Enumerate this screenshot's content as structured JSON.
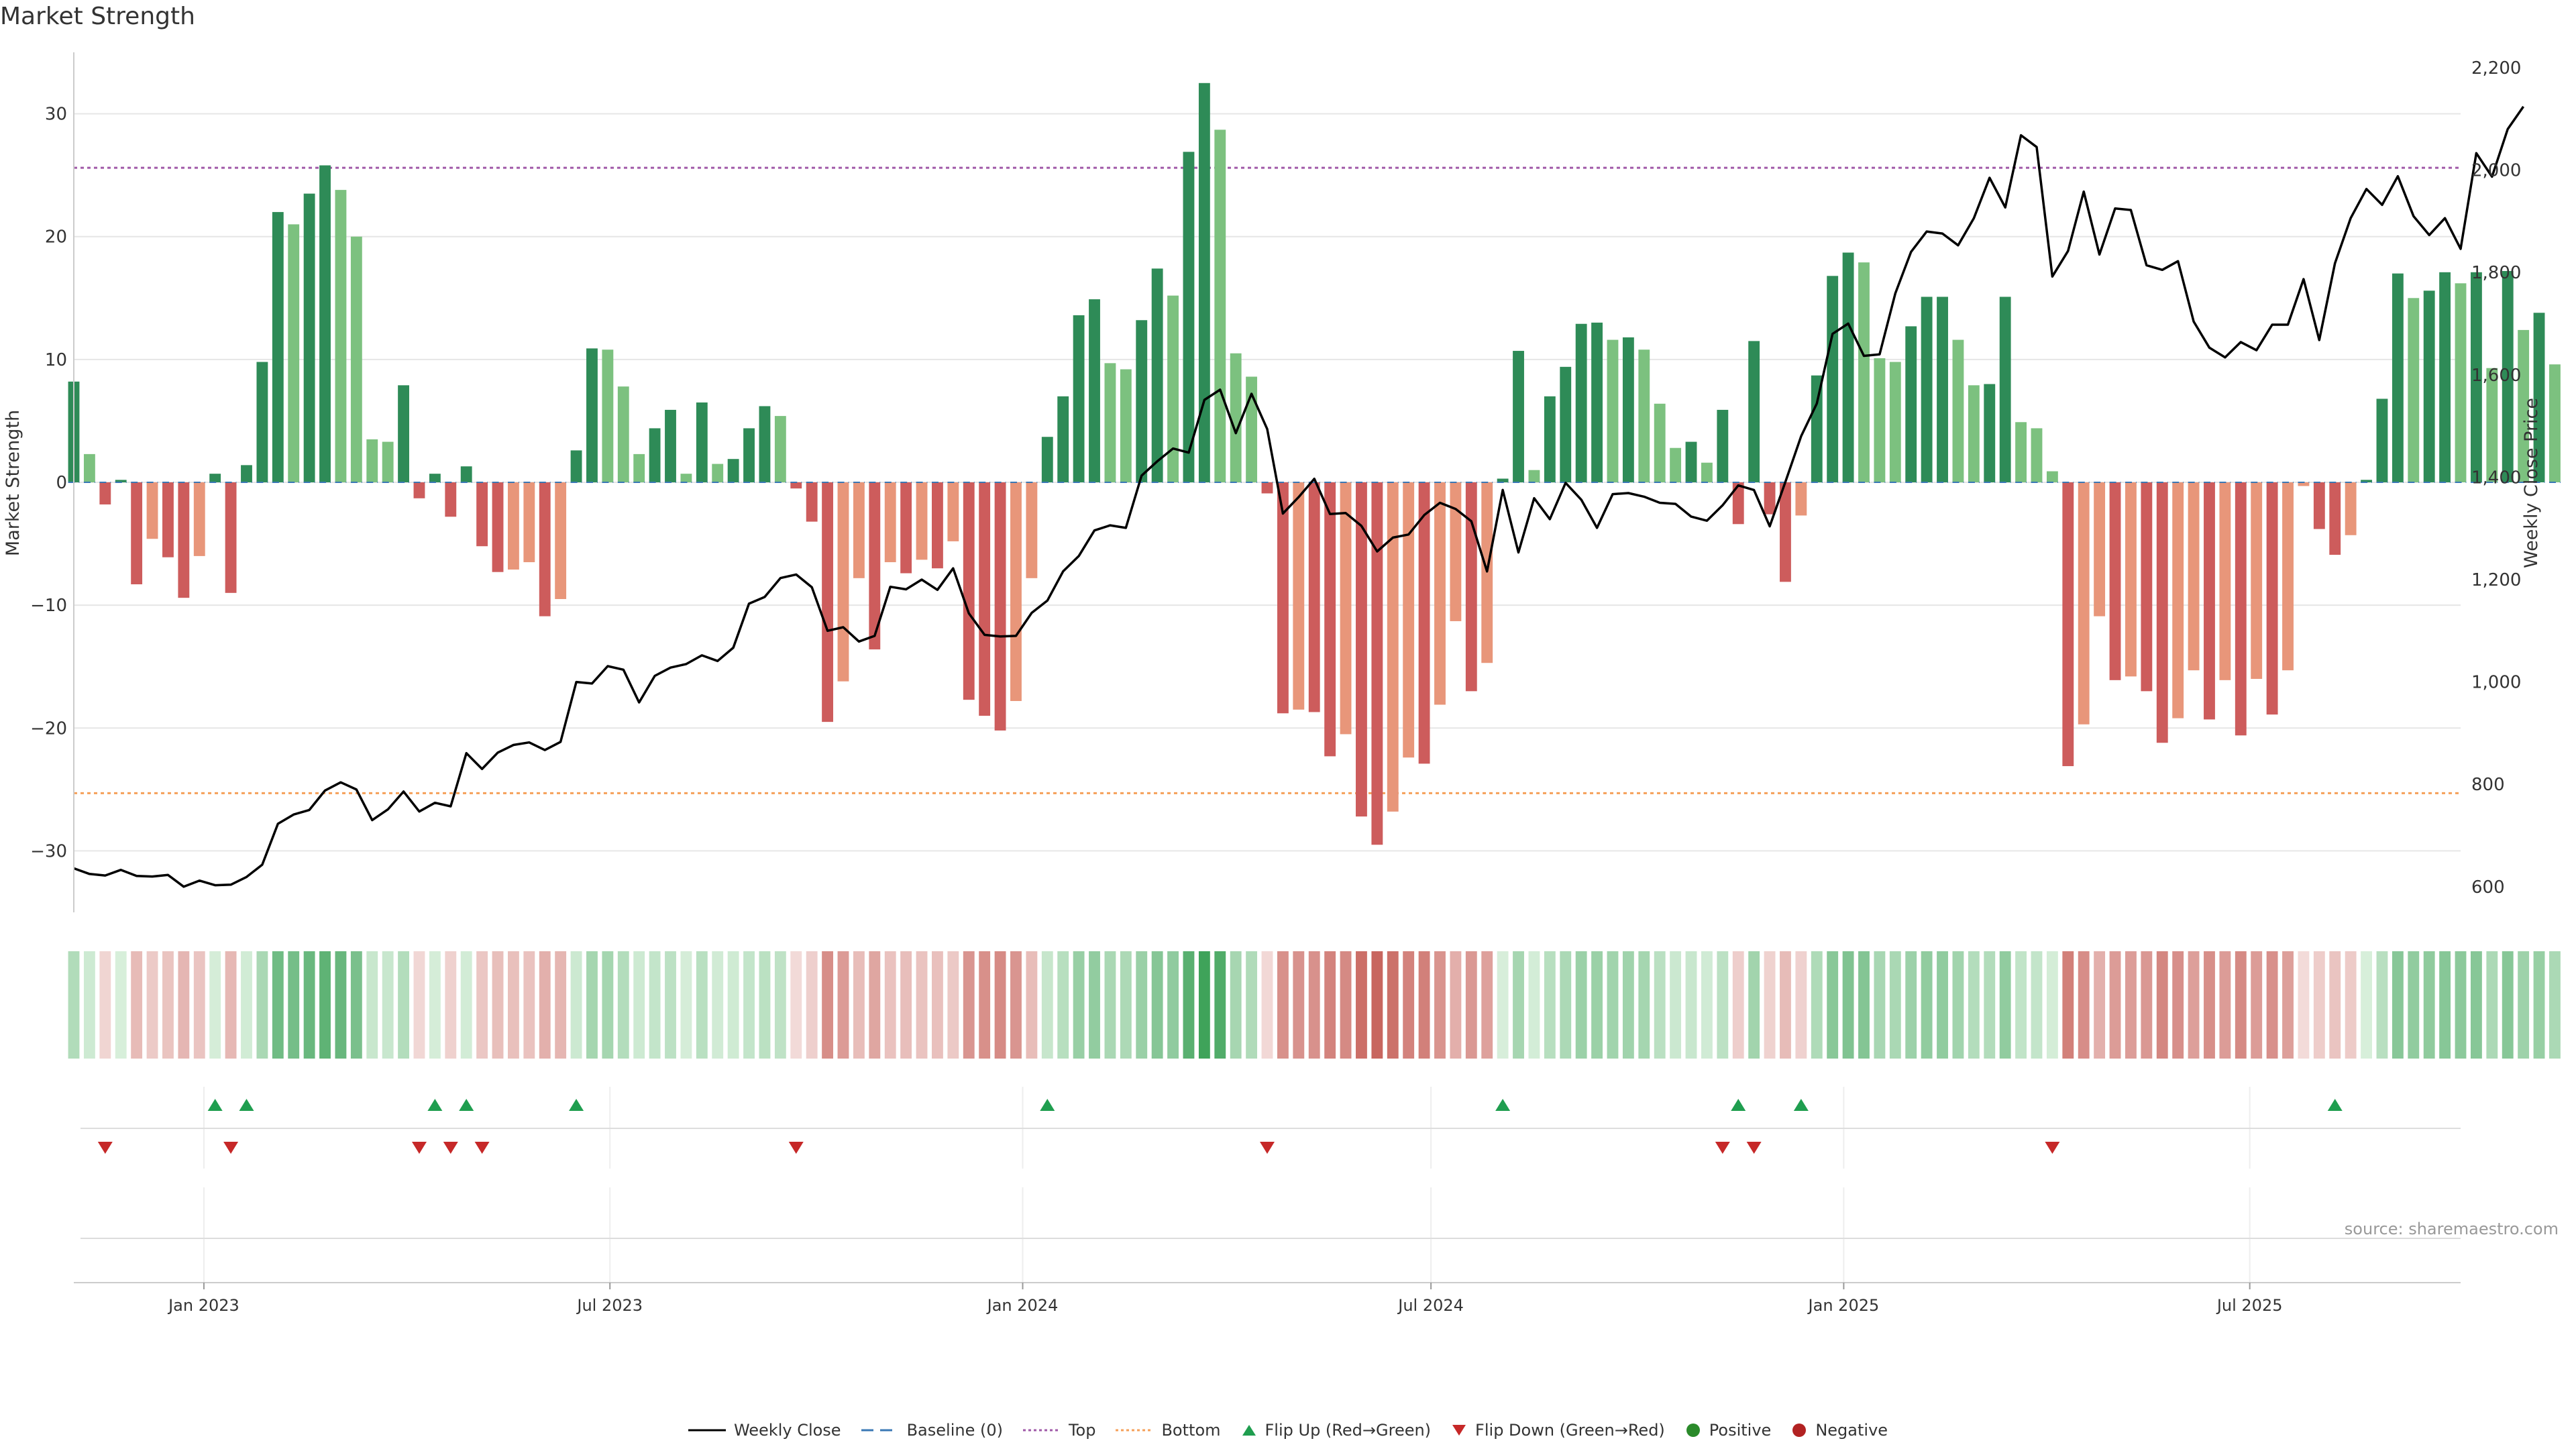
{
  "chart_data": {
    "title": "Market Strength",
    "type": "bar",
    "left_axis": {
      "label": "Market Strength",
      "ticks": [
        -30,
        -20,
        -10,
        0,
        10,
        20,
        30
      ],
      "range": [
        -35,
        35
      ]
    },
    "right_axis": {
      "label": "Weekly Close Price",
      "ticks": [
        600,
        800,
        1000,
        1200,
        1400,
        1600,
        1800,
        2000,
        2200
      ],
      "tick_labels": [
        "600",
        "800",
        "1,000",
        "1,200",
        "1,400",
        "1,600",
        "1,800",
        "2,000",
        "2,200"
      ],
      "range": [
        550,
        2230
      ]
    },
    "x_range": [
      "2022-11-04",
      "2025-10-03"
    ],
    "x_ticks": [
      {
        "date": "2023-01-01",
        "label": "Jan 2023"
      },
      {
        "date": "2023-07-01",
        "label": "Jul 2023"
      },
      {
        "date": "2024-01-01",
        "label": "Jan 2024"
      },
      {
        "date": "2024-07-01",
        "label": "Jul 2024"
      },
      {
        "date": "2025-01-01",
        "label": "Jan 2025"
      },
      {
        "date": "2025-07-01",
        "label": "Jul 2025"
      }
    ],
    "start_date": "2022-11-04",
    "week_days": 7,
    "strength": [
      8.2,
      2.3,
      -1.8,
      0.2,
      -8.3,
      -4.6,
      -6.1,
      -9.4,
      -6.0,
      0.7,
      -9.0,
      1.4,
      9.8,
      22.0,
      21.0,
      23.5,
      25.8,
      23.8,
      20.0,
      3.5,
      3.3,
      7.9,
      -1.3,
      0.7,
      -2.8,
      1.3,
      -5.2,
      -7.3,
      -7.1,
      -6.5,
      -10.9,
      -9.5,
      2.6,
      10.9,
      10.8,
      7.8,
      2.3,
      4.4,
      5.9,
      0.7,
      6.5,
      1.5,
      1.9,
      4.4,
      6.2,
      5.4,
      -0.5,
      -3.2,
      -19.5,
      -16.2,
      -7.8,
      -13.6,
      -6.5,
      -7.4,
      -6.3,
      -7.0,
      -4.8,
      -17.7,
      -19.0,
      -20.2,
      -17.8,
      -7.8,
      3.7,
      7.0,
      13.6,
      14.9,
      9.7,
      9.2,
      13.2,
      17.4,
      15.2,
      26.9,
      32.5,
      28.7,
      10.5,
      8.6,
      -0.9,
      -18.8,
      -18.5,
      -18.7,
      -22.3,
      -20.5,
      -27.2,
      -29.5,
      -26.8,
      -22.4,
      -22.9,
      -18.1,
      -11.3,
      -17.0,
      -14.7,
      0.3,
      10.7,
      1.0,
      7.0,
      9.4,
      12.9,
      13.0,
      11.6,
      11.8,
      10.8,
      6.4,
      2.8,
      3.3,
      1.6,
      5.9,
      -3.4,
      11.5,
      -2.6,
      -8.1,
      -2.7,
      8.7,
      16.8,
      18.7,
      17.9,
      10.1,
      9.8,
      12.7,
      15.1,
      15.1,
      11.6,
      7.9,
      8.0,
      15.1,
      4.9,
      4.4,
      0.9,
      -23.1,
      -19.7,
      -10.9,
      -16.1,
      -15.8,
      -17.0,
      -21.2,
      -19.2,
      -15.3,
      -19.3,
      -16.1,
      -20.6,
      -16.0,
      -18.9,
      -15.3,
      -0.3,
      -3.8,
      -5.9,
      -4.3,
      0.2,
      6.8,
      17.0,
      15.0,
      15.6,
      17.1,
      16.2,
      17.1,
      9.3,
      17.2,
      12.4,
      13.8,
      9.6
    ],
    "weekly_close": [
      636,
      625,
      622,
      633,
      621,
      620,
      623,
      600,
      612,
      603,
      604,
      619,
      643,
      723,
      741,
      750,
      788,
      804,
      790,
      730,
      751,
      786,
      747,
      764,
      757,
      861,
      830,
      862,
      877,
      882,
      867,
      883,
      1000,
      997,
      1031,
      1024,
      960,
      1012,
      1028,
      1035,
      1052,
      1041,
      1067,
      1153,
      1166,
      1203,
      1210,
      1185,
      1100,
      1107,
      1079,
      1090,
      1186,
      1181,
      1200,
      1180,
      1222,
      1134,
      1092,
      1089,
      1090,
      1135,
      1159,
      1216,
      1246,
      1296,
      1306,
      1301,
      1403,
      1431,
      1456,
      1448,
      1551,
      1571,
      1486,
      1563,
      1494,
      1329,
      1361,
      1397,
      1328,
      1330,
      1305,
      1255,
      1282,
      1288,
      1326,
      1350,
      1338,
      1314,
      1216,
      1375,
      1253,
      1359,
      1318,
      1389,
      1356,
      1301,
      1367,
      1369,
      1362,
      1350,
      1348,
      1323,
      1315,
      1345,
      1384,
      1375,
      1304,
      1391,
      1480,
      1544,
      1680,
      1700,
      1637,
      1640,
      1759,
      1840,
      1880,
      1876,
      1853,
      1906,
      1985,
      1927,
      2068,
      2045,
      1792,
      1842,
      1958,
      1835,
      1925,
      1922,
      1814,
      1805,
      1822,
      1704,
      1653,
      1634,
      1664,
      1648,
      1698,
      1698,
      1787,
      1668,
      1818,
      1906,
      1963,
      1932,
      1988,
      1910,
      1873,
      1906,
      1846,
      2033,
      1987,
      2080,
      2124
    ],
    "zones": [
      {
        "name": "Top",
        "value": 25.6,
        "color": "#a05aa8"
      },
      {
        "name": "Bottom",
        "value": -25.3,
        "color": "#f5a05a"
      }
    ],
    "flip_up_weeks": [
      9,
      11,
      23,
      25,
      32,
      62,
      91,
      106,
      110,
      144
    ],
    "flip_down_weeks": [
      2,
      10,
      22,
      24,
      26,
      46,
      76,
      105,
      107,
      126
    ],
    "legend": [
      "Weekly Close",
      "Baseline (0)",
      "Top",
      "Bottom",
      "Flip Up (Red→Green)",
      "Flip Down (Green→Red)",
      "Positive",
      "Negative"
    ]
  },
  "source_text": "source: sharemaestro.com",
  "colors": {
    "pos_dark": "#2e8b57",
    "pos_light": "#7cc17f",
    "neg_dark": "#cd5c5c",
    "neg_light": "#e8967a",
    "price_line": "#000000",
    "baseline": "#3a78b5",
    "flip_up": "#1f9e4f",
    "flip_down": "#c62828",
    "positive_dot": "#2a8a2a",
    "negative_dot": "#b22222",
    "grid": "#e6e6e6",
    "axis": "#cccccc"
  }
}
